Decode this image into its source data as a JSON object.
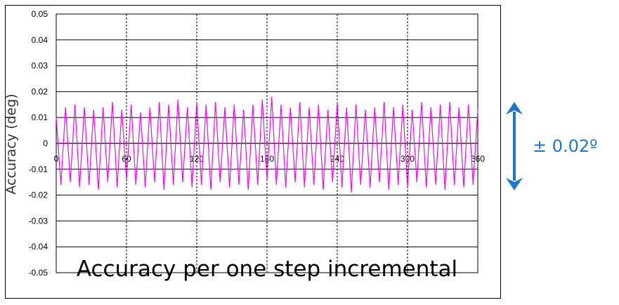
{
  "chart_data": {
    "type": "line",
    "title": "Accuracy per one step incremental",
    "xlabel": "",
    "ylabel": "Accuracy (deg)",
    "xlim": [
      0,
      360
    ],
    "ylim": [
      -0.05,
      0.05
    ],
    "x_ticks": [
      "0",
      "60",
      "120",
      "180",
      "240",
      "300",
      "360"
    ],
    "y_ticks": [
      "0.05",
      "0.04",
      "0.03",
      "0.02",
      "0.01",
      "0",
      "-0.01",
      "-0.02",
      "-0.03",
      "-0.04",
      "-0.05"
    ],
    "grid": true,
    "series": [
      {
        "color": "#ff00ff",
        "x": [
          0,
          4,
          8,
          12,
          16,
          20,
          24,
          28,
          32,
          36,
          40,
          44,
          48,
          52,
          56,
          60,
          64,
          68,
          72,
          76,
          80,
          84,
          88,
          92,
          96,
          100,
          104,
          108,
          112,
          116,
          120,
          124,
          128,
          132,
          136,
          140,
          144,
          148,
          152,
          156,
          160,
          164,
          168,
          172,
          176,
          180,
          184,
          188,
          192,
          196,
          200,
          204,
          208,
          212,
          216,
          220,
          224,
          228,
          232,
          236,
          240,
          244,
          248,
          252,
          256,
          260,
          264,
          268,
          272,
          276,
          280,
          284,
          288,
          292,
          296,
          300,
          304,
          308,
          312,
          316,
          320,
          324,
          328,
          332,
          336,
          340,
          344,
          348,
          352,
          356,
          360
        ],
        "y": [
          0.01,
          -0.016,
          0.014,
          -0.015,
          0.015,
          -0.017,
          0.014,
          -0.016,
          0.013,
          -0.018,
          0.014,
          -0.015,
          0.016,
          -0.017,
          0.013,
          -0.014,
          0.015,
          -0.016,
          0.012,
          -0.017,
          0.014,
          -0.015,
          0.016,
          -0.018,
          0.015,
          -0.016,
          0.017,
          -0.015,
          0.014,
          -0.017,
          0.016,
          -0.016,
          0.015,
          -0.018,
          0.016,
          -0.015,
          0.014,
          -0.017,
          0.015,
          -0.016,
          0.013,
          -0.018,
          0.015,
          -0.016,
          0.017,
          -0.014,
          0.018,
          -0.016,
          0.015,
          -0.017,
          0.014,
          -0.015,
          0.016,
          -0.017,
          0.014,
          -0.016,
          0.015,
          -0.018,
          0.013,
          -0.015,
          0.016,
          -0.017,
          0.014,
          -0.019,
          0.015,
          -0.016,
          0.013,
          -0.017,
          0.014,
          -0.015,
          0.016,
          -0.018,
          0.014,
          -0.016,
          0.015,
          -0.017,
          0.013,
          -0.015,
          0.016,
          -0.017,
          0.014,
          -0.016,
          0.015,
          -0.018,
          0.016,
          -0.016,
          0.014,
          -0.017,
          0.015,
          -0.016,
          0.013
        ]
      }
    ]
  },
  "annotation": {
    "text": "± 0.02º",
    "color": "#1f77c8",
    "icon": "double-arrow-vertical"
  }
}
